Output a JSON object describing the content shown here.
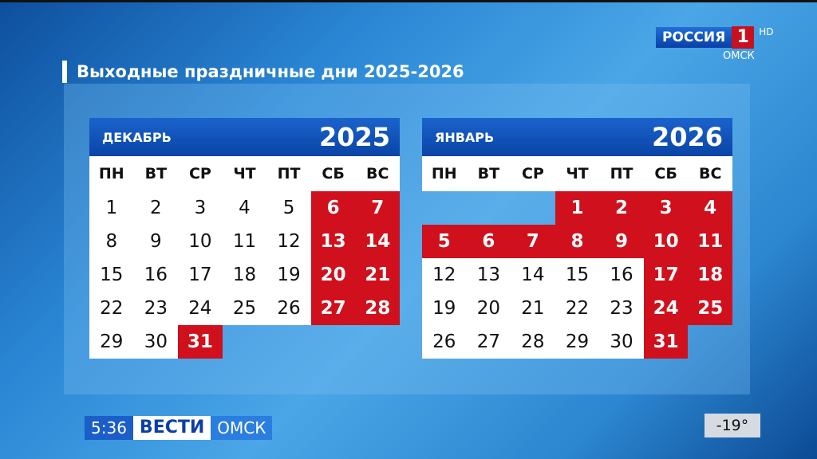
{
  "title": "Выходные праздничные дни 2025-2026",
  "logo": {
    "name": "РОССИЯ",
    "number": "1",
    "hd": "HD",
    "region": "ОМСК"
  },
  "weekdays": [
    "ПН",
    "ВТ",
    "СР",
    "ЧТ",
    "ПТ",
    "СБ",
    "ВС"
  ],
  "calendars": [
    {
      "month": "ДЕКАБРЬ",
      "year": "2025",
      "cells": [
        1,
        2,
        3,
        4,
        5,
        6,
        7,
        8,
        9,
        10,
        11,
        12,
        13,
        14,
        15,
        16,
        17,
        18,
        19,
        20,
        21,
        22,
        23,
        24,
        25,
        26,
        27,
        28,
        29,
        30,
        31,
        null,
        null,
        null,
        null
      ],
      "holidays": [
        6,
        7,
        13,
        14,
        20,
        21,
        27,
        28,
        31
      ]
    },
    {
      "month": "ЯНВАРЬ",
      "year": "2026",
      "cells": [
        null,
        null,
        null,
        1,
        2,
        3,
        4,
        5,
        6,
        7,
        8,
        9,
        10,
        11,
        12,
        13,
        14,
        15,
        16,
        17,
        18,
        19,
        20,
        21,
        22,
        23,
        24,
        25,
        26,
        27,
        28,
        29,
        30,
        31,
        null
      ],
      "holidays": [
        1,
        2,
        3,
        4,
        5,
        6,
        7,
        8,
        9,
        10,
        11,
        17,
        18,
        24,
        25,
        31
      ]
    }
  ],
  "ticker": {
    "time": "5:36",
    "brand": "ВЕСТИ",
    "city": "ОМСК"
  },
  "temperature": "-19°",
  "colors": {
    "holiday": "#d0101c",
    "header": "#0a44a6"
  }
}
